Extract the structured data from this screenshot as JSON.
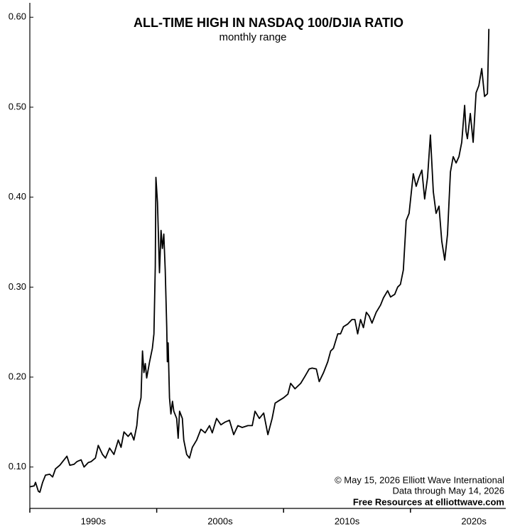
{
  "chart_data": {
    "type": "line",
    "title": "ALL-TIME HIGH IN NASDAQ 100/DJIA RATIO",
    "subtitle": "monthly range",
    "credits": [
      "© May 15, 2026 Elliott Wave International",
      "Data through May 14, 2026",
      "Free Resources at elliottwave.com"
    ],
    "xlim": [
      1990,
      2027.4
    ],
    "xticks": [
      1990,
      2000,
      2010,
      2020
    ],
    "xlabels": [
      {
        "value": 1995,
        "label": "1990s"
      },
      {
        "value": 2005,
        "label": "2000s"
      },
      {
        "value": 2015,
        "label": "2010s"
      },
      {
        "value": 2025,
        "label": "2020s"
      }
    ],
    "ylim": [
      0.054,
      0.616
    ],
    "yticks": [
      {
        "value": 0.1,
        "label": "0.10"
      },
      {
        "value": 0.2,
        "label": "0.20"
      },
      {
        "value": 0.3,
        "label": "0.30"
      },
      {
        "value": 0.4,
        "label": "0.40"
      },
      {
        "value": 0.5,
        "label": "0.50"
      },
      {
        "value": 0.6,
        "label": "0.60"
      }
    ],
    "color": "#000000",
    "x": [
      1990,
      1990.34,
      1990.45,
      1990.67,
      1990.79,
      1991.01,
      1991.24,
      1991.57,
      1991.8,
      1992.02,
      1992.36,
      1992.7,
      1992.92,
      1993.15,
      1993.48,
      1993.71,
      1994.04,
      1994.27,
      1994.61,
      1994.83,
      1995.17,
      1995.39,
      1995.73,
      1995.96,
      1996.29,
      1996.63,
      1996.97,
      1997.19,
      1997.42,
      1997.75,
      1997.98,
      1998.2,
      1998.43,
      1998.54,
      1998.76,
      1998.88,
      1998.99,
      1999.1,
      1999.21,
      1999.44,
      1999.66,
      1999.78,
      1999.89,
      1999.94,
      2000.06,
      2000.22,
      2000.34,
      2000.45,
      2000.56,
      2000.67,
      2000.79,
      2000.84,
      2000.9,
      2001.01,
      2001.12,
      2001.24,
      2001.35,
      2001.57,
      2001.69,
      2001.8,
      2002.02,
      2002.13,
      2002.36,
      2002.58,
      2002.81,
      2003.15,
      2003.48,
      2003.82,
      2004.16,
      2004.38,
      2004.72,
      2005.06,
      2005.39,
      2005.73,
      2006.07,
      2006.4,
      2006.74,
      2007.19,
      2007.53,
      2007.75,
      2008.09,
      2008.43,
      2008.76,
      2009.1,
      2009.33,
      2009.55,
      2010,
      2010.34,
      2010.56,
      2010.9,
      2011.35,
      2011.69,
      2012.02,
      2012.25,
      2012.58,
      2012.81,
      2013.15,
      2013.48,
      2013.71,
      2013.93,
      2014.27,
      2014.49,
      2014.72,
      2015.06,
      2015.39,
      2015.62,
      2015.84,
      2016.07,
      2016.29,
      2016.52,
      2016.74,
      2016.97,
      2017.3,
      2017.64,
      2017.87,
      2018.2,
      2018.43,
      2018.76,
      2018.99,
      2019.21,
      2019.44,
      2019.66,
      2019.89,
      2020.22,
      2020.45,
      2020.67,
      2020.9,
      2021.12,
      2021.35,
      2021.57,
      2021.8,
      2022.02,
      2022.25,
      2022.47,
      2022.7,
      2022.92,
      2023.15,
      2023.37,
      2023.6,
      2023.82,
      2024.04,
      2024.27,
      2024.38,
      2024.49,
      2024.72,
      2024.94,
      2025.17,
      2025.39,
      2025.62,
      2025.84,
      2026.07,
      2026.18
    ],
    "values": [
      0.078,
      0.079,
      0.083,
      0.073,
      0.072,
      0.083,
      0.091,
      0.092,
      0.089,
      0.098,
      0.102,
      0.108,
      0.112,
      0.102,
      0.103,
      0.106,
      0.108,
      0.1,
      0.105,
      0.106,
      0.11,
      0.124,
      0.114,
      0.11,
      0.121,
      0.114,
      0.13,
      0.122,
      0.139,
      0.134,
      0.138,
      0.13,
      0.146,
      0.163,
      0.177,
      0.229,
      0.205,
      0.215,
      0.199,
      0.217,
      0.232,
      0.248,
      0.323,
      0.422,
      0.394,
      0.316,
      0.363,
      0.343,
      0.359,
      0.319,
      0.256,
      0.217,
      0.238,
      0.177,
      0.159,
      0.173,
      0.162,
      0.154,
      0.132,
      0.162,
      0.154,
      0.13,
      0.114,
      0.11,
      0.122,
      0.13,
      0.142,
      0.138,
      0.146,
      0.138,
      0.154,
      0.147,
      0.15,
      0.152,
      0.136,
      0.146,
      0.144,
      0.146,
      0.146,
      0.162,
      0.154,
      0.16,
      0.136,
      0.154,
      0.171,
      0.173,
      0.177,
      0.181,
      0.193,
      0.187,
      0.193,
      0.201,
      0.209,
      0.21,
      0.209,
      0.195,
      0.205,
      0.217,
      0.229,
      0.232,
      0.248,
      0.248,
      0.256,
      0.259,
      0.264,
      0.264,
      0.248,
      0.264,
      0.255,
      0.272,
      0.268,
      0.26,
      0.272,
      0.28,
      0.288,
      0.296,
      0.289,
      0.292,
      0.3,
      0.303,
      0.319,
      0.374,
      0.382,
      0.426,
      0.412,
      0.422,
      0.43,
      0.398,
      0.422,
      0.469,
      0.406,
      0.382,
      0.39,
      0.351,
      0.33,
      0.359,
      0.428,
      0.445,
      0.438,
      0.445,
      0.461,
      0.502,
      0.473,
      0.465,
      0.493,
      0.461,
      0.516,
      0.524,
      0.543,
      0.512,
      0.515,
      0.587
    ]
  }
}
